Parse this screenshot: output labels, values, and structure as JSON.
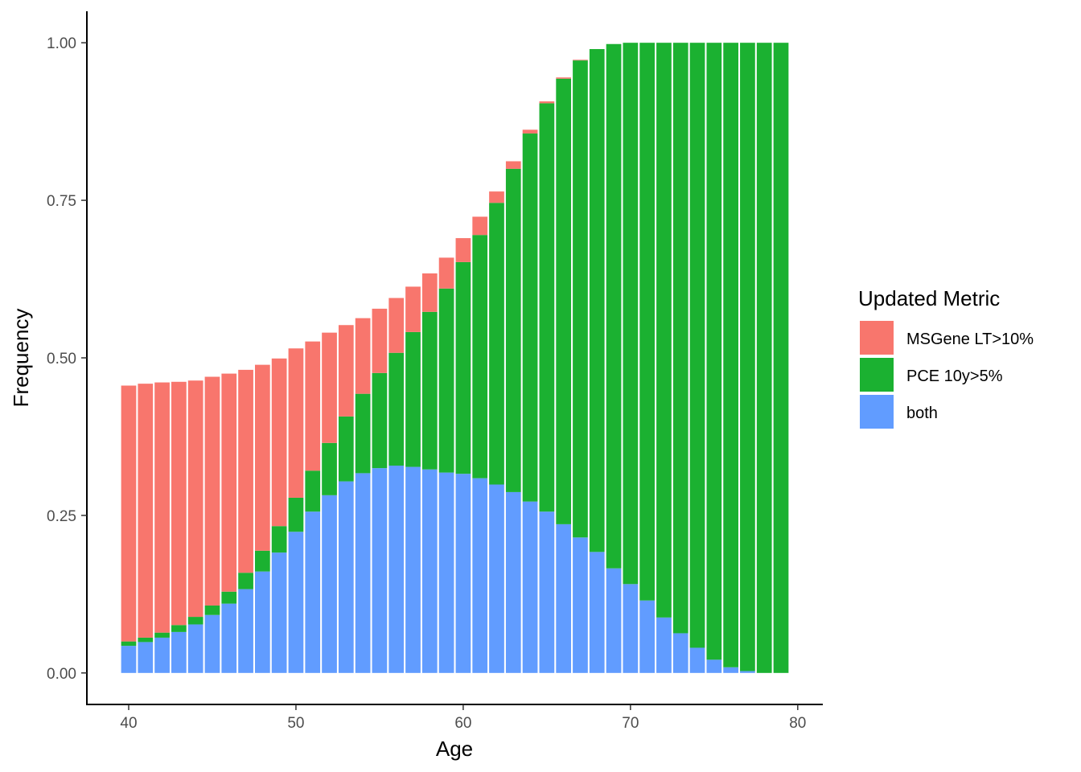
{
  "chart_data": {
    "type": "bar",
    "stacked": true,
    "xlabel": "Age",
    "ylabel": "Frequency",
    "xlim": [
      37.5,
      81.5
    ],
    "ylim": [
      -0.05,
      1.05
    ],
    "x_ticks": [
      40,
      50,
      60,
      70,
      80
    ],
    "x_tick_labels": [
      "40",
      "50",
      "60",
      "70",
      "80"
    ],
    "y_ticks": [
      0,
      0.25,
      0.5,
      0.75,
      1.0
    ],
    "y_tick_labels": [
      "0.00",
      "0.25",
      "0.50",
      "0.75",
      "1.00"
    ],
    "grid": false,
    "legend": {
      "title": "Updated Metric",
      "placement": "right"
    },
    "x": [
      40,
      41,
      42,
      43,
      44,
      45,
      46,
      47,
      48,
      49,
      50,
      51,
      52,
      53,
      54,
      55,
      56,
      57,
      58,
      59,
      60,
      61,
      62,
      63,
      64,
      65,
      66,
      67,
      68,
      69,
      70,
      71,
      72,
      73,
      74,
      75,
      76,
      77,
      78,
      79
    ],
    "series": [
      {
        "name": "both",
        "color": "#619CFF",
        "values": [
          0.043,
          0.049,
          0.056,
          0.065,
          0.077,
          0.092,
          0.11,
          0.133,
          0.161,
          0.191,
          0.224,
          0.256,
          0.282,
          0.304,
          0.317,
          0.325,
          0.329,
          0.327,
          0.323,
          0.318,
          0.316,
          0.309,
          0.299,
          0.287,
          0.272,
          0.256,
          0.236,
          0.215,
          0.192,
          0.166,
          0.141,
          0.115,
          0.088,
          0.063,
          0.04,
          0.021,
          0.009,
          0.003,
          0.0,
          0.0
        ]
      },
      {
        "name": "PCE 10y>5%",
        "color": "#1BB131",
        "values": [
          0.007,
          0.007,
          0.008,
          0.011,
          0.012,
          0.015,
          0.019,
          0.026,
          0.033,
          0.042,
          0.054,
          0.065,
          0.083,
          0.103,
          0.126,
          0.151,
          0.179,
          0.214,
          0.25,
          0.292,
          0.336,
          0.386,
          0.447,
          0.513,
          0.584,
          0.648,
          0.707,
          0.757,
          0.798,
          0.832,
          0.859,
          0.885,
          0.912,
          0.937,
          0.96,
          0.979,
          0.991,
          0.997,
          1.0,
          1.0
        ]
      },
      {
        "name": "MSGene LT>10%",
        "color": "#F8766D",
        "values": [
          0.406,
          0.403,
          0.397,
          0.386,
          0.375,
          0.363,
          0.346,
          0.322,
          0.295,
          0.266,
          0.237,
          0.205,
          0.175,
          0.145,
          0.12,
          0.102,
          0.087,
          0.072,
          0.061,
          0.049,
          0.038,
          0.029,
          0.018,
          0.012,
          0.006,
          0.003,
          0.002,
          0.001,
          0.0,
          0.0,
          0.0,
          0.0,
          0.0,
          0.0,
          0.0,
          0.0,
          0.0,
          0.0,
          0.0,
          0.0
        ]
      }
    ],
    "legend_entries": [
      {
        "name": "MSGene LT>10%",
        "color": "#F8766D"
      },
      {
        "name": "PCE 10y>5%",
        "color": "#1BB131"
      },
      {
        "name": "both",
        "color": "#619CFF"
      }
    ]
  }
}
